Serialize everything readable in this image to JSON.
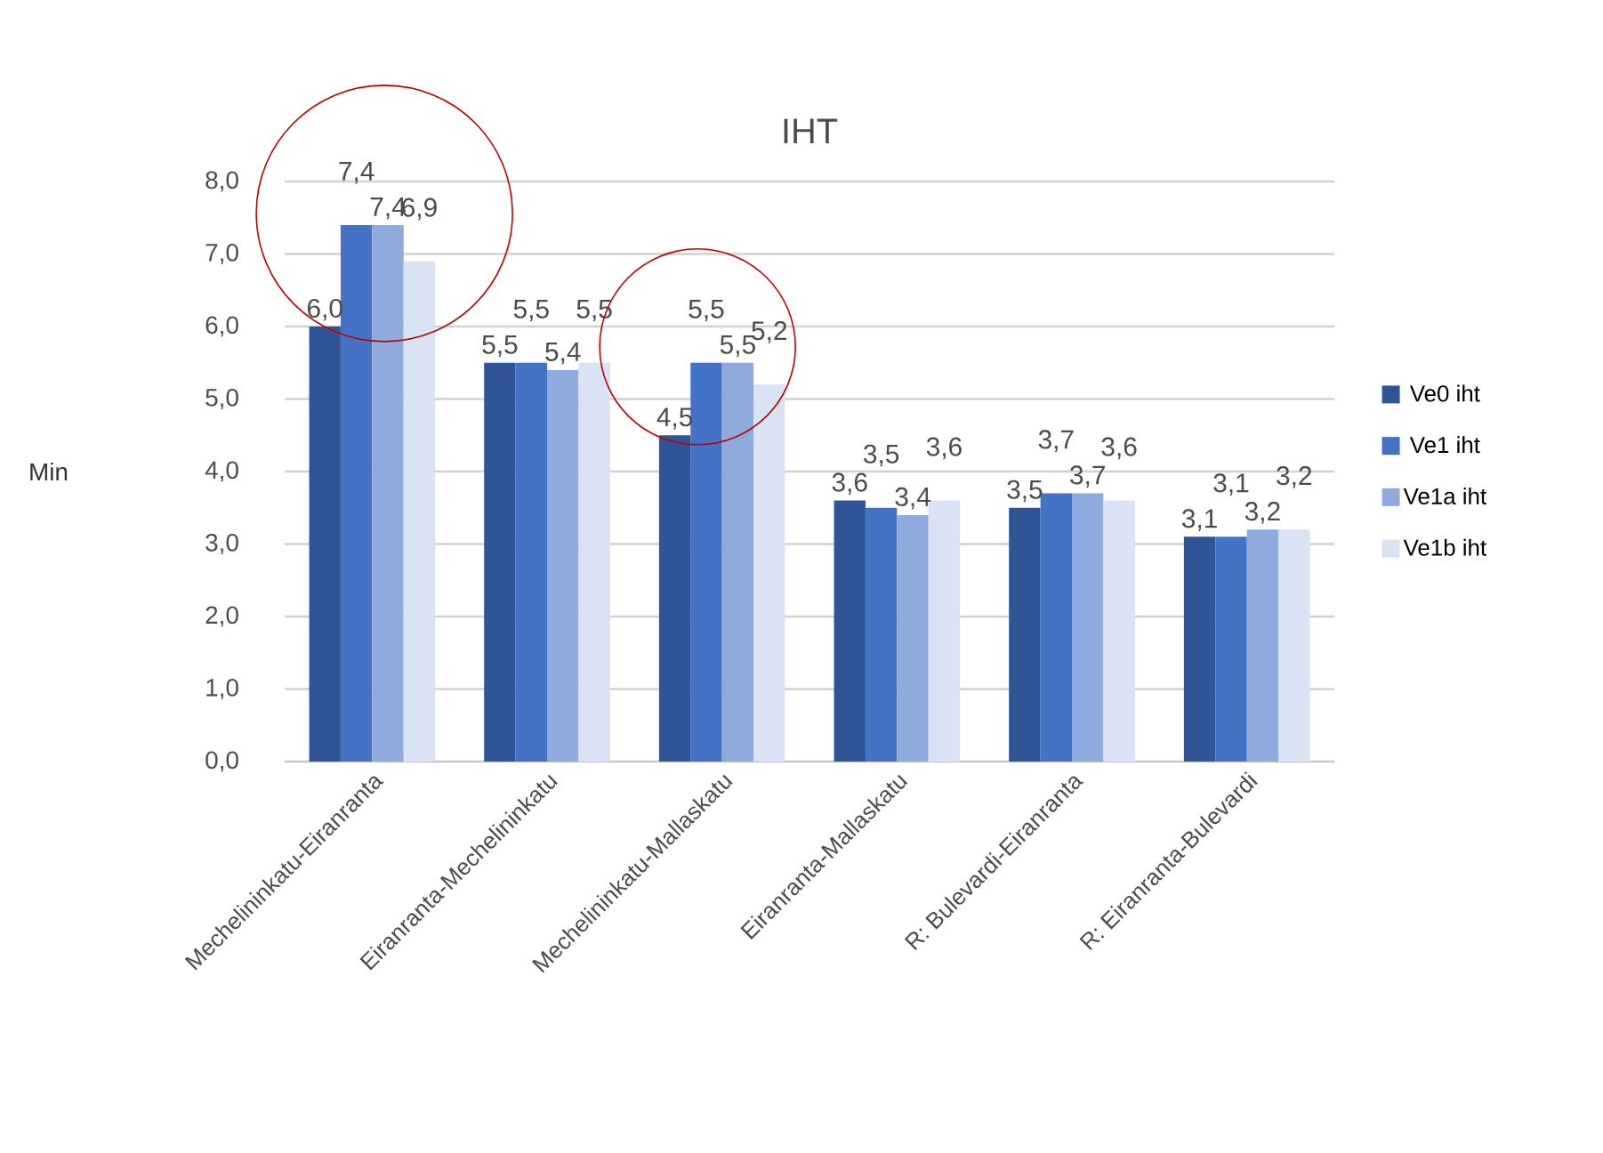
{
  "chart_data": {
    "type": "bar",
    "title": "IHT",
    "ylabel": "Min",
    "categories": [
      "Mechelininkatu-Eiranranta",
      "Eiranranta-Mechelininkatu",
      "Mechelininkatu-Mallaskatu",
      "Eiranranta-Mallaskatu",
      "R: Bulevardi-Eiranranta",
      "R: Eiranranta-Bulevardi"
    ],
    "series": [
      {
        "name": "Ve0 iht",
        "color": "#2f5597",
        "values": [
          6.0,
          5.5,
          4.5,
          3.6,
          3.5,
          3.1
        ],
        "value_labels": [
          "6,0",
          "5,5",
          "4,5",
          "3,6",
          "3,5",
          "3,1"
        ]
      },
      {
        "name": "Ve1 iht",
        "color": "#4472c4",
        "values": [
          7.4,
          5.5,
          5.5,
          3.5,
          3.7,
          3.1
        ],
        "value_labels": [
          "7,4",
          "5,5",
          "5,5",
          "3,5",
          "3,7",
          "3,1"
        ]
      },
      {
        "name": "Ve1a iht",
        "color": "#8faadc",
        "values": [
          7.4,
          5.4,
          5.5,
          3.4,
          3.7,
          3.2
        ],
        "value_labels": [
          "7,4",
          "5,4",
          "5,5",
          "3,4",
          "3,7",
          "3,2"
        ]
      },
      {
        "name": "Ve1b iht",
        "color": "#dae3f3",
        "values": [
          6.9,
          5.5,
          5.2,
          3.6,
          3.6,
          3.2
        ],
        "value_labels": [
          "6,9",
          "5,5",
          "5,2",
          "3,6",
          "3,6",
          "3,2"
        ]
      }
    ],
    "ylim": [
      0,
      8
    ],
    "yticks": [
      {
        "value": 0,
        "label": "0,0"
      },
      {
        "value": 1,
        "label": "1,0"
      },
      {
        "value": 2,
        "label": "2,0"
      },
      {
        "value": 3,
        "label": "3,0"
      },
      {
        "value": 4,
        "label": "4,0"
      },
      {
        "value": 5,
        "label": "5,0"
      },
      {
        "value": 6,
        "label": "6,0"
      },
      {
        "value": 7,
        "label": "7,0"
      },
      {
        "value": 8,
        "label": "8,0"
      }
    ],
    "grid": "y",
    "legend": "right"
  }
}
